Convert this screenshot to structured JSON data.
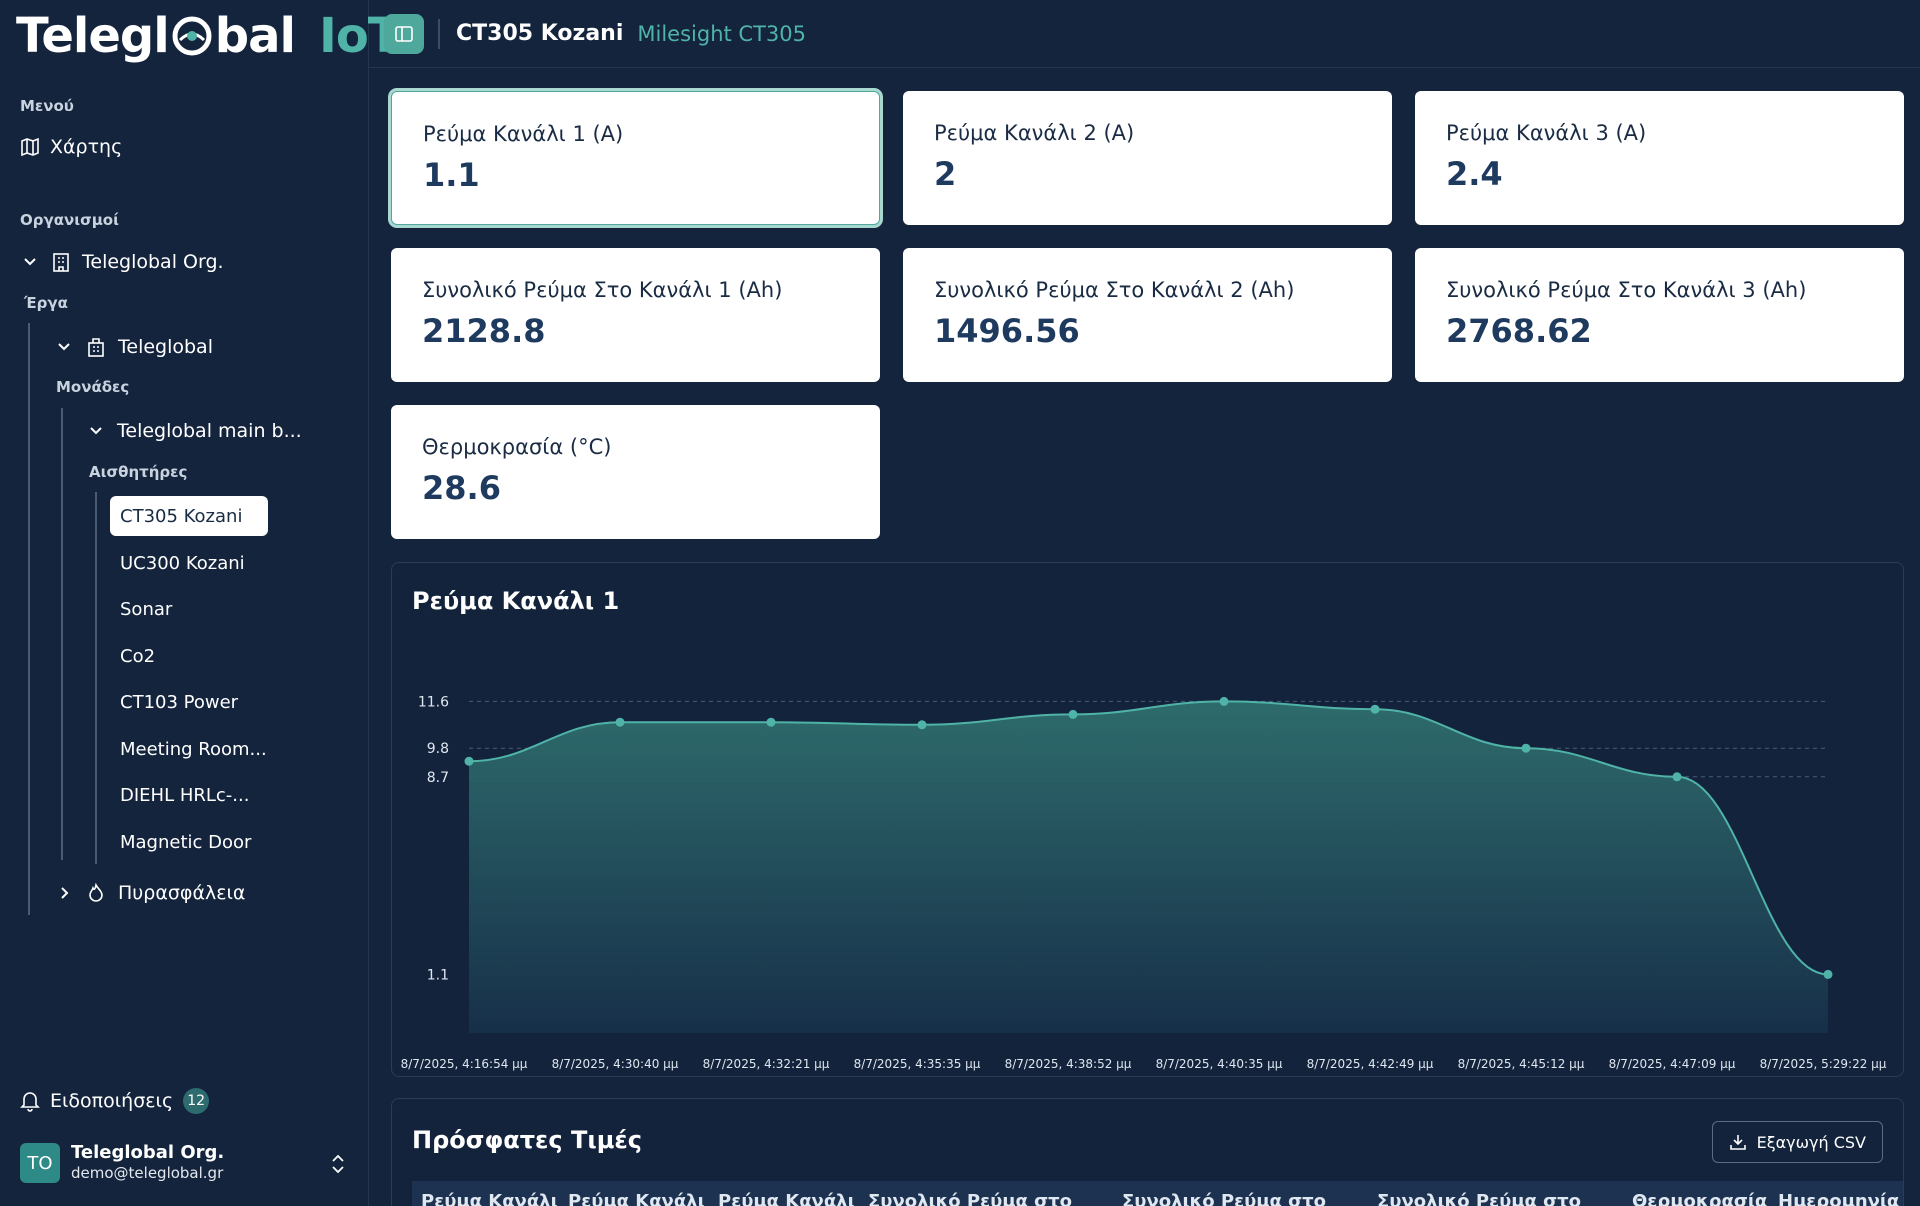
{
  "brand": {
    "logo_text_1": "Telegl",
    "logo_text_2": "bal",
    "logo_suffix": "IoT"
  },
  "sidebar": {
    "menu_label": "Μενού",
    "map_label": "Χάρτης",
    "orgs_label": "Οργανισμοί",
    "org_name": "Teleglobal Org.",
    "projects_label": "Έργα",
    "project_name": "Teleglobal",
    "units_label": "Μονάδες",
    "unit_name": "Teleglobal main b...",
    "sensors_label": "Αισθητήρες",
    "sensors": [
      "CT305 Kozani",
      "UC300 Kozani",
      "Sonar",
      "Co2",
      "CT103 Power",
      "Meeting Room...",
      "DIEHL HRLc-...",
      "Magnetic Door"
    ],
    "fire_label": "Πυρασφάλεια",
    "notifications_label": "Ειδοποιήσεις",
    "notifications_count": "12"
  },
  "user": {
    "initials": "TO",
    "org": "Teleglobal Org.",
    "email": "demo@teleglobal.gr"
  },
  "header": {
    "title": "CT305 Kozani",
    "subtitle": "Milesight CT305"
  },
  "cards": [
    {
      "label": "Ρεύμα Κανάλι 1 (A)",
      "value": "1.1"
    },
    {
      "label": "Ρεύμα Κανάλι 2 (A)",
      "value": "2"
    },
    {
      "label": "Ρεύμα Κανάλι 3 (A)",
      "value": "2.4"
    },
    {
      "label": "Συνολικό Ρεύμα Στο Κανάλι 1 (Ah)",
      "value": "2128.8"
    },
    {
      "label": "Συνολικό Ρεύμα Στο Κανάλι 2 (Ah)",
      "value": "1496.56"
    },
    {
      "label": "Συνολικό Ρεύμα Στο Κανάλι 3 (Ah)",
      "value": "2768.62"
    },
    {
      "label": "Θερμοκρασία (°C)",
      "value": "28.6"
    }
  ],
  "chart": {
    "title": "Ρεύμα Κανάλι 1"
  },
  "chart_data": {
    "type": "area",
    "title": "Ρεύμα Κανάλι 1",
    "x": [
      "8/7/2025, 4:16:54 μμ",
      "8/7/2025, 4:30:40 μμ",
      "8/7/2025, 4:32:21 μμ",
      "8/7/2025, 4:35:35 μμ",
      "8/7/2025, 4:38:52 μμ",
      "8/7/2025, 4:40:35 μμ",
      "8/7/2025, 4:42:49 μμ",
      "8/7/2025, 4:45:12 μμ",
      "8/7/2025, 4:47:09 μμ",
      "8/7/2025, 5:29:22 μμ"
    ],
    "y": [
      9.3,
      10.8,
      10.8,
      10.7,
      11.1,
      11.6,
      11.3,
      9.8,
      8.7,
      1.1
    ],
    "yticks": [
      11.6,
      9.8,
      8.7,
      1.1
    ],
    "ylim": [
      0,
      12.5
    ],
    "grid": true,
    "colors": {
      "line": "#4fb3a8",
      "fill_top": "#2f6f6e",
      "fill_bottom": "#17304a",
      "grid": "#4a5c74"
    }
  },
  "recent": {
    "title": "Πρόσφατες Τιμές",
    "export_label": "Εξαγωγή CSV",
    "columns": [
      "Ρεύμα Κανάλι",
      "Ρεύμα Κανάλι",
      "Ρεύμα Κανάλι",
      "Συνολικό Ρεύμα στο",
      "Συνολικό Ρεύμα στο",
      "Συνολικό Ρεύμα στο",
      "Θερμοκρασία",
      "Ημερομηνία κα"
    ]
  }
}
